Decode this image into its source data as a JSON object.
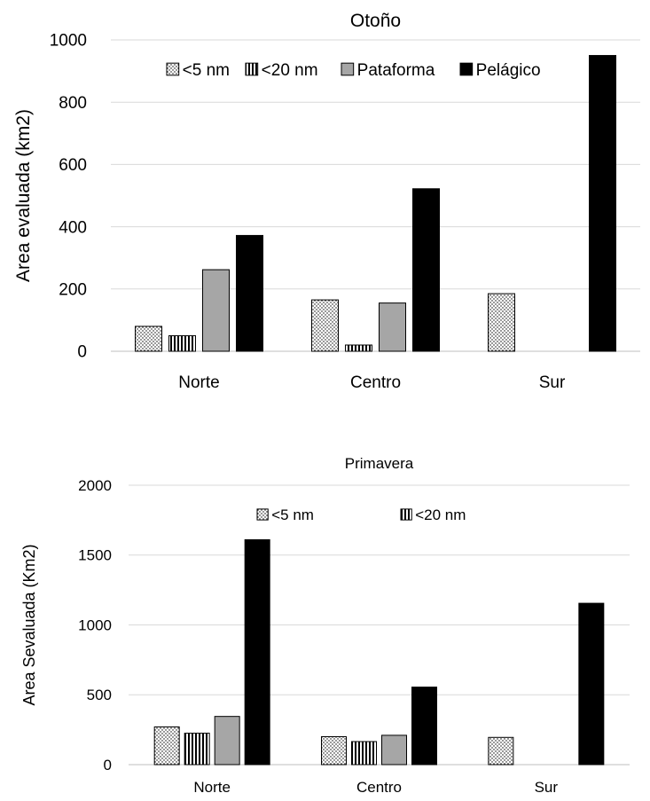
{
  "chart_data": [
    {
      "type": "bar",
      "title": "Otoño",
      "ylabel": "Area evaluada (km2)",
      "xlabel": "",
      "categories": [
        "Norte",
        "Centro",
        "Sur"
      ],
      "ylim": [
        0,
        1000
      ],
      "yticks": [
        0,
        200,
        400,
        600,
        800,
        1000
      ],
      "grid": true,
      "legend_position": "top",
      "series": [
        {
          "name": "<5 nm",
          "pattern": "dots",
          "color": "#ffffff",
          "values": [
            80,
            165,
            185
          ]
        },
        {
          "name": "<20 nm",
          "pattern": "vertical-stripes",
          "color": "#ffffff",
          "values": [
            50,
            20,
            0
          ]
        },
        {
          "name": "Pataforma",
          "pattern": "solid",
          "color": "#a6a6a6",
          "values": [
            262,
            155,
            0
          ]
        },
        {
          "name": "Pelágico",
          "pattern": "solid",
          "color": "#000000",
          "values": [
            372,
            522,
            950
          ]
        }
      ]
    },
    {
      "type": "bar",
      "title": "Primavera",
      "ylabel": "Area Sevaluada (Km2)",
      "xlabel": "",
      "categories": [
        "Norte",
        "Centro",
        "Sur"
      ],
      "ylim": [
        0,
        2000
      ],
      "yticks": [
        0,
        500,
        1000,
        1500,
        2000
      ],
      "grid": true,
      "legend_position": "top",
      "series": [
        {
          "name": "<5 nm",
          "pattern": "dots",
          "color": "#ffffff",
          "values": [
            270,
            200,
            195
          ]
        },
        {
          "name": "<20 nm",
          "pattern": "vertical-stripes",
          "color": "#ffffff",
          "values": [
            225,
            165,
            0
          ]
        },
        {
          "name": "",
          "pattern": "solid",
          "color": "#a6a6a6",
          "values": [
            345,
            210,
            0
          ]
        },
        {
          "name": "",
          "pattern": "solid",
          "color": "#000000",
          "values": [
            1610,
            555,
            1155
          ]
        }
      ]
    }
  ]
}
